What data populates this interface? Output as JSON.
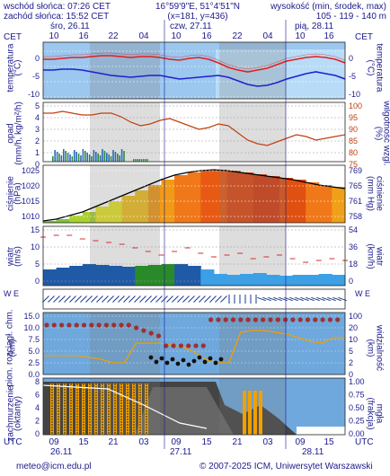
{
  "header": {
    "sunrise": "wschód słońca: 07:26 CET",
    "sunset": "zachód słońca: 15:52 CET",
    "coords": "16°59'9\"E, 51°4'51\"N",
    "grid": "(x=181, y=436)",
    "elevation_label": "wysokość (min, środek, max)",
    "elevation_values": "105 - 119 - 140 m"
  },
  "top_axis": {
    "zone_left": "CET",
    "zone_right": "CET",
    "days": [
      "śro, 26.11",
      "czw, 27.11",
      "pią, 28.11"
    ],
    "hours": [
      "10",
      "16",
      "22",
      "04",
      "10",
      "16",
      "22",
      "04",
      "10",
      "16"
    ]
  },
  "bottom_axis": {
    "zone_left": "UTC",
    "zone_right": "UTC",
    "hours": [
      "09",
      "15",
      "21",
      "03",
      "09",
      "15",
      "21",
      "03",
      "09",
      "15"
    ],
    "days": [
      "26.11",
      "27.11",
      "28.11"
    ]
  },
  "panels": {
    "temperature": {
      "left_label": "temperatura",
      "left_unit": "(°C)",
      "right_label": "temperatura",
      "right_unit": "(°C)",
      "left_ticks": [
        "0",
        "-5",
        "-10"
      ],
      "right_ticks": [
        "0",
        "-5",
        "-10"
      ]
    },
    "precip": {
      "left_label": "opad",
      "left_unit": "(mm/h, kg/m²/h)",
      "right_label": "wilgotność wzgl.",
      "right_unit": "(%)",
      "left_ticks": [
        "5",
        "4",
        "3",
        "2",
        "1",
        "0"
      ],
      "right_ticks": [
        "100",
        "95",
        "90",
        "85",
        "80",
        "75"
      ]
    },
    "pressure": {
      "left_label": "ciśnienie",
      "left_unit": "(hPa)",
      "right_label": "ciśnienie",
      "right_unit": "(mm Hg)",
      "left_ticks": [
        "1025",
        "1020",
        "1015",
        "1010"
      ],
      "right_ticks": [
        "769",
        "765",
        "761",
        "758"
      ]
    },
    "wind": {
      "left_label": "wiatr",
      "left_unit": "(m/s)",
      "right_label": "wiatr",
      "right_unit": "(km/h)",
      "left_ticks": [
        "15",
        "10",
        "5",
        "0"
      ],
      "right_ticks": [
        "54",
        "36",
        "18",
        "0"
      ]
    },
    "wind_dir": {
      "compass_left": "W E",
      "compass_right": "W E"
    },
    "clouds": {
      "left_label": "pion. rozciągł. chm.",
      "left_unit": "(km)",
      "right_label": "widzialność",
      "right_unit": "(km)",
      "left_ticks": [
        "15.0",
        "10.0",
        "7.5",
        "5.0",
        "2.5",
        "0.0"
      ],
      "right_ticks": [
        "100",
        "20",
        "10",
        "5",
        "2",
        "0"
      ]
    },
    "cover": {
      "left_label": "zachmurzenie",
      "left_unit": "(oktanty)",
      "right_label": "mgła",
      "right_unit": "(frakcja)",
      "left_ticks": [
        "8",
        "6",
        "4",
        "2",
        "0"
      ],
      "right_ticks": [
        "1.00",
        "0.75",
        "0.50",
        "0.25",
        "0.00"
      ]
    }
  },
  "footer": {
    "email": "meteo@icm.edu.pl",
    "copyright": "© 2007-2025 ICM, Uniwersytet Warszawski"
  },
  "colors": {
    "text": "#1a1a8c",
    "panel_blue": "#6fa8dc",
    "night": "#b9b9b9",
    "temp_red": "#e02020",
    "temp_blue": "#2020d0",
    "humidity": "#c04010",
    "precip": "#2a6db5",
    "wind_bar": "#1f5aa6",
    "cloud_orange": "#f0a000"
  }
}
